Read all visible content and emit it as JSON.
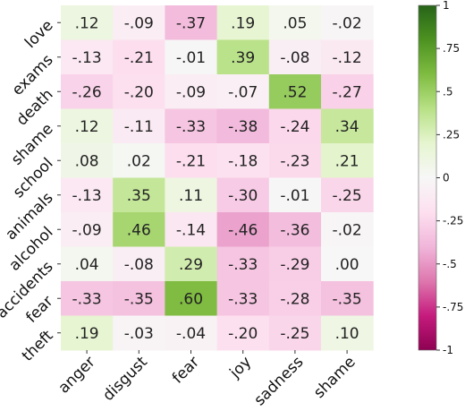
{
  "chart_data": {
    "type": "heatmap",
    "rows": [
      "love",
      "exams",
      "death",
      "shame",
      "school",
      "animals",
      "alcohol",
      "accidents",
      "fear",
      "theft"
    ],
    "columns": [
      "anger",
      "disgust",
      "fear",
      "joy",
      "sadness",
      "shame"
    ],
    "values": [
      [
        0.12,
        -0.09,
        -0.37,
        0.19,
        0.05,
        -0.02
      ],
      [
        -0.13,
        -0.21,
        -0.01,
        0.39,
        -0.08,
        -0.12
      ],
      [
        -0.26,
        -0.2,
        -0.09,
        -0.07,
        0.52,
        -0.27
      ],
      [
        0.12,
        -0.11,
        -0.33,
        -0.38,
        -0.24,
        0.34
      ],
      [
        0.08,
        0.02,
        -0.21,
        -0.18,
        -0.23,
        0.21
      ],
      [
        -0.13,
        0.35,
        0.11,
        -0.3,
        -0.01,
        -0.25
      ],
      [
        -0.09,
        0.46,
        -0.14,
        -0.46,
        -0.36,
        -0.02
      ],
      [
        0.04,
        -0.08,
        0.29,
        -0.33,
        -0.29,
        0.0
      ],
      [
        -0.33,
        -0.35,
        0.6,
        -0.33,
        -0.28,
        -0.35
      ],
      [
        0.19,
        -0.03,
        -0.04,
        -0.2,
        -0.25,
        0.1
      ]
    ],
    "cell_labels": [
      [
        ".12",
        "-.09",
        "-.37",
        ".19",
        ".05",
        "-.02"
      ],
      [
        "-.13",
        "-.21",
        "-.01",
        ".39",
        "-.08",
        "-.12"
      ],
      [
        "-.26",
        "-.20",
        "-.09",
        "-.07",
        ".52",
        "-.27"
      ],
      [
        ".12",
        "-.11",
        "-.33",
        "-.38",
        "-.24",
        ".34"
      ],
      [
        ".08",
        ".02",
        "-.21",
        "-.18",
        "-.23",
        ".21"
      ],
      [
        "-.13",
        ".35",
        ".11",
        "-.30",
        "-.01",
        "-.25"
      ],
      [
        "-.09",
        ".46",
        "-.14",
        "-.46",
        "-.36",
        "-.02"
      ],
      [
        ".04",
        "-.08",
        ".29",
        "-.33",
        "-.29",
        ".00"
      ],
      [
        "-.33",
        "-.35",
        ".60",
        "-.33",
        "-.28",
        "-.35"
      ],
      [
        ".19",
        "-.03",
        "-.04",
        "-.20",
        "-.25",
        ".10"
      ]
    ],
    "colormap": "PiYG",
    "vmin": -1,
    "vmax": 1,
    "colorbar": {
      "ticks": [
        1,
        0.75,
        0.5,
        0.25,
        0,
        -0.25,
        -0.5,
        -0.75,
        -1
      ],
      "tick_labels": [
        "1",
        ".75",
        ".5",
        ".25",
        "0",
        "-.25",
        "-.5",
        "-.75",
        "-1"
      ]
    },
    "title": "",
    "xlabel": "",
    "ylabel": ""
  }
}
